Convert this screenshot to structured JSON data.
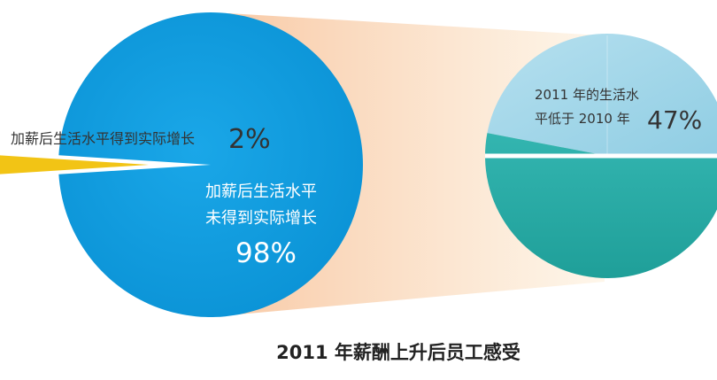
{
  "chart_data": [
    {
      "type": "pie",
      "slices": [
        {
          "label_lines": [
            "加薪后生活水平得到实际增长"
          ],
          "value": 2,
          "value_label": "2%",
          "color": "#f2c415"
        },
        {
          "label_lines": [
            "加薪后生活水平",
            "未得到实际增长"
          ],
          "value": 98,
          "value_label": "98%",
          "color": "#0d9ee0"
        }
      ]
    },
    {
      "type": "pie",
      "slices": [
        {
          "label_lines": [
            "2011 年的生活水",
            "平低于 2010 年"
          ],
          "value": 47,
          "value_label": "47%",
          "color": "#9fd6e8"
        },
        {
          "label_lines": [],
          "value": 53,
          "value_label": "",
          "color": "#2aaca6"
        }
      ]
    }
  ],
  "title": "2011 年薪酬上升后员工感受"
}
